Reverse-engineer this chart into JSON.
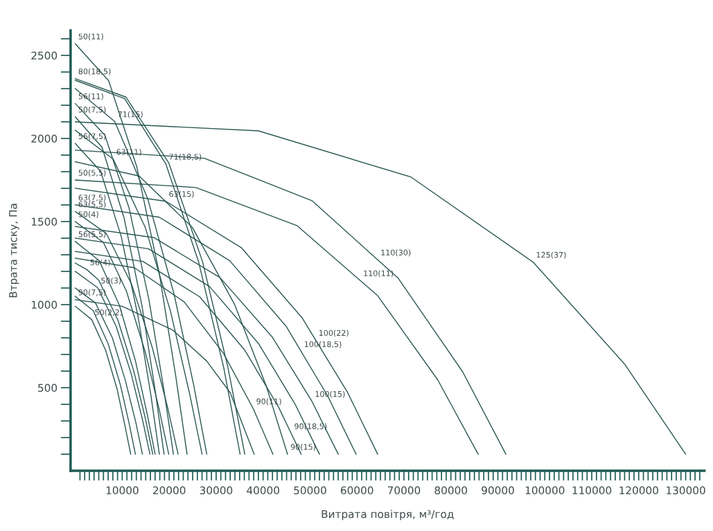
{
  "chart_data": {
    "type": "line",
    "xlabel": "Витрата повітря, м³/год",
    "ylabel": "Втрата тиску, Па",
    "xlim": [
      -1000,
      134000
    ],
    "ylim": [
      0,
      2650
    ],
    "xticks": [
      {
        "value": 1000,
        "label": null
      },
      {
        "value": 2000,
        "label": null
      },
      {
        "value": 3000,
        "label": null
      },
      {
        "value": 4000,
        "label": null
      },
      {
        "value": 5000,
        "label": null
      },
      {
        "value": 6000,
        "label": null
      },
      {
        "value": 7000,
        "label": null
      },
      {
        "value": 8000,
        "label": null
      },
      {
        "value": 9000,
        "label": null
      },
      10000,
      {
        "value": 11000,
        "label": null
      },
      {
        "value": 12000,
        "label": null
      },
      {
        "value": 13000,
        "label": null
      },
      {
        "value": 14000,
        "label": null
      },
      {
        "value": 15000,
        "label": null
      },
      {
        "value": 16000,
        "label": null
      },
      {
        "value": 17000,
        "label": null
      },
      {
        "value": 18000,
        "label": null
      },
      {
        "value": 19000,
        "label": null
      },
      20000,
      {
        "value": 21000,
        "label": null
      },
      {
        "value": 22000,
        "label": null
      },
      {
        "value": 23000,
        "label": null
      },
      {
        "value": 24000,
        "label": null
      },
      {
        "value": 25000,
        "label": null
      },
      {
        "value": 26000,
        "label": null
      },
      {
        "value": 27000,
        "label": null
      },
      {
        "value": 28000,
        "label": null
      },
      {
        "value": 29000,
        "label": null
      },
      30000,
      {
        "value": 31000,
        "label": null
      },
      {
        "value": 32000,
        "label": null
      },
      {
        "value": 33000,
        "label": null
      },
      {
        "value": 34000,
        "label": null
      },
      {
        "value": 35000,
        "label": null
      },
      {
        "value": 36000,
        "label": null
      },
      {
        "value": 37000,
        "label": null
      },
      {
        "value": 38000,
        "label": null
      },
      {
        "value": 39000,
        "label": null
      },
      40000,
      {
        "value": 41000,
        "label": null
      },
      {
        "value": 42000,
        "label": null
      },
      {
        "value": 43000,
        "label": null
      },
      {
        "value": 44000,
        "label": null
      },
      {
        "value": 45000,
        "label": null
      },
      {
        "value": 46000,
        "label": null
      },
      {
        "value": 47000,
        "label": null
      },
      {
        "value": 48000,
        "label": null
      },
      {
        "value": 49000,
        "label": null
      },
      50000,
      {
        "value": 51000,
        "label": null
      },
      {
        "value": 52000,
        "label": null
      },
      {
        "value": 53000,
        "label": null
      },
      {
        "value": 54000,
        "label": null
      },
      {
        "value": 55000,
        "label": null
      },
      {
        "value": 56000,
        "label": null
      },
      {
        "value": 57000,
        "label": null
      },
      {
        "value": 58000,
        "label": null
      },
      {
        "value": 59000,
        "label": null
      },
      60000,
      {
        "value": 61000,
        "label": null
      },
      {
        "value": 62000,
        "label": null
      },
      {
        "value": 63000,
        "label": null
      },
      {
        "value": 64000,
        "label": null
      },
      {
        "value": 65000,
        "label": null
      },
      {
        "value": 66000,
        "label": null
      },
      {
        "value": 67000,
        "label": null
      },
      {
        "value": 68000,
        "label": null
      },
      {
        "value": 69000,
        "label": null
      },
      70000,
      {
        "value": 71000,
        "label": null
      },
      {
        "value": 72000,
        "label": null
      },
      {
        "value": 73000,
        "label": null
      },
      {
        "value": 74000,
        "label": null
      },
      {
        "value": 75000,
        "label": null
      },
      {
        "value": 76000,
        "label": null
      },
      {
        "value": 77000,
        "label": null
      },
      {
        "value": 78000,
        "label": null
      },
      {
        "value": 79000,
        "label": null
      },
      80000,
      {
        "value": 81000,
        "label": null
      },
      {
        "value": 82000,
        "label": null
      },
      {
        "value": 83000,
        "label": null
      },
      {
        "value": 84000,
        "label": null
      },
      {
        "value": 85000,
        "label": null
      },
      {
        "value": 86000,
        "label": null
      },
      {
        "value": 87000,
        "label": null
      },
      {
        "value": 88000,
        "label": null
      },
      {
        "value": 89000,
        "label": null
      },
      90000,
      {
        "value": 91000,
        "label": null
      },
      {
        "value": 92000,
        "label": null
      },
      {
        "value": 93000,
        "label": null
      },
      {
        "value": 94000,
        "label": null
      },
      {
        "value": 95000,
        "label": null
      },
      {
        "value": 96000,
        "label": null
      },
      {
        "value": 97000,
        "label": null
      },
      {
        "value": 98000,
        "label": null
      },
      {
        "value": 99000,
        "label": null
      },
      100000,
      {
        "value": 101000,
        "label": null
      },
      {
        "value": 102000,
        "label": null
      },
      {
        "value": 103000,
        "label": null
      },
      {
        "value": 104000,
        "label": null
      },
      {
        "value": 105000,
        "label": null
      },
      {
        "value": 106000,
        "label": null
      },
      {
        "value": 107000,
        "label": null
      },
      {
        "value": 108000,
        "label": null
      },
      {
        "value": 109000,
        "label": null
      },
      110000,
      {
        "value": 111000,
        "label": null
      },
      {
        "value": 112000,
        "label": null
      },
      {
        "value": 113000,
        "label": null
      },
      {
        "value": 114000,
        "label": null
      },
      {
        "value": 115000,
        "label": null
      },
      {
        "value": 116000,
        "label": null
      },
      {
        "value": 117000,
        "label": null
      },
      {
        "value": 118000,
        "label": null
      },
      {
        "value": 119000,
        "label": null
      },
      120000,
      {
        "value": 121000,
        "label": null
      },
      {
        "value": 122000,
        "label": null
      },
      {
        "value": 123000,
        "label": null
      },
      {
        "value": 124000,
        "label": null
      },
      {
        "value": 125000,
        "label": null
      },
      {
        "value": 126000,
        "label": null
      },
      {
        "value": 127000,
        "label": null
      },
      {
        "value": 128000,
        "label": null
      },
      {
        "value": 129000,
        "label": null
      },
      130000,
      {
        "value": 131000,
        "label": null
      },
      {
        "value": 132000,
        "label": null
      },
      {
        "value": 133000,
        "label": null
      }
    ],
    "yticks": [
      {
        "value": 100,
        "label": null
      },
      {
        "value": 200,
        "label": null
      },
      {
        "value": 300,
        "label": null
      },
      {
        "value": 400,
        "label": null
      },
      500,
      {
        "value": 600,
        "label": null
      },
      {
        "value": 700,
        "label": null
      },
      {
        "value": 800,
        "label": null
      },
      {
        "value": 900,
        "label": null
      },
      1000,
      {
        "value": 1100,
        "label": null
      },
      {
        "value": 1200,
        "label": null
      },
      {
        "value": 1300,
        "label": null
      },
      {
        "value": 1400,
        "label": null
      },
      1500,
      {
        "value": 1600,
        "label": null
      },
      {
        "value": 1700,
        "label": null
      },
      {
        "value": 1800,
        "label": null
      },
      {
        "value": 1900,
        "label": null
      },
      2000,
      {
        "value": 2100,
        "label": null
      },
      {
        "value": 2200,
        "label": null
      },
      {
        "value": 2300,
        "label": null
      },
      {
        "value": 2400,
        "label": null
      },
      2500,
      {
        "value": 2600,
        "label": null
      }
    ],
    "series": [
      {
        "color": "#2a5753",
        "x": [
          0,
          7100,
          13100,
          17900,
          21400,
          23800
        ],
        "values": [
          2570,
          2348,
          1829,
          1187,
          569,
          100
        ]
      },
      {
        "color": "#2a5753",
        "x": [
          0,
          10800,
          19900,
          27100,
          32500,
          36100
        ],
        "values": [
          2360,
          2249,
          1854,
          1259,
          624,
          100
        ]
      },
      {
        "color": "#2a5753",
        "x": [
          0,
          10500,
          19300,
          26300,
          31600,
          35100
        ],
        "values": [
          2350,
          2240,
          1846,
          1254,
          622,
          100
        ]
      },
      {
        "color": "#2a5753",
        "x": [
          0,
          8400,
          15400,
          21000,
          25200,
          28000
        ],
        "values": [
          2300,
          2102,
          1640,
          1068,
          518,
          100
        ]
      },
      {
        "color": "#2a5753",
        "x": [
          0,
          6300,
          11500,
          15700,
          18800,
          20900
        ],
        "values": [
          2210,
          2020,
          1577,
          1028,
          501,
          100
        ]
      },
      {
        "color": "#2a5753",
        "x": [
          0,
          5700,
          10400,
          14200,
          17000,
          18900
        ],
        "values": [
          2130,
          1947,
          1521,
          993,
          486,
          100
        ]
      },
      {
        "color": "#2a5753",
        "x": [
          0,
          39000,
          71500,
          97500,
          117000,
          130000
        ],
        "values": [
          2100,
          2046,
          1768,
          1256,
          642,
          100
        ]
      },
      {
        "color": "#2a5753",
        "x": [
          0,
          8100,
          14900,
          20300,
          24300,
          27000
        ],
        "values": [
          2050,
          1875,
          1465,
          958,
          470,
          100
        ]
      },
      {
        "color": "#2a5753",
        "x": [
          0,
          5400,
          9800,
          13400,
          16100,
          17900
        ],
        "values": [
          1970,
          1802,
          1409,
          923,
          455,
          100
        ]
      },
      {
        "color": "#2a5753",
        "x": [
          0,
          27500,
          50400,
          64400,
          68800,
          82500,
          91700
        ],
        "values": [
          1930,
          1881,
          1626,
          1270,
          1158,
          596,
          100
        ]
      },
      {
        "color": "#2a5753",
        "x": [
          0,
          13600,
          24900,
          33900,
          40700,
          45200
        ],
        "values": [
          1860,
          1774,
          1466,
          1003,
          508,
          100
        ]
      },
      {
        "color": "#2a5753",
        "x": [
          0,
          25700,
          47200,
          60700,
          64400,
          77200,
          85800
        ],
        "values": [
          1750,
          1705,
          1476,
          1145,
          1054,
          547,
          100
        ]
      },
      {
        "color": "#2a5753",
        "x": [
          0,
          19300,
          35400,
          48300,
          51200,
          58000,
          64400
        ],
        "values": [
          1700,
          1622,
          1342,
          921,
          786,
          471,
          100
        ]
      },
      {
        "color": "#2a5753",
        "x": [
          0,
          17900,
          32900,
          44900,
          48100,
          53800,
          59800
        ],
        "values": [
          1600,
          1526,
          1264,
          870,
          718,
          448,
          100
        ]
      },
      {
        "color": "#2a5753",
        "x": [
          0,
          6600,
          12000,
          16400,
          19700,
          21900
        ],
        "values": [
          1560,
          1429,
          1122,
          742,
          377,
          100
        ]
      },
      {
        "color": "#2a5753",
        "x": [
          0,
          6000,
          10900,
          14900,
          17900,
          19900
        ],
        "values": [
          1500,
          1374,
          1080,
          716,
          366,
          100
        ]
      },
      {
        "color": "#2a5753",
        "x": [
          0,
          16800,
          30800,
          42000,
          50400,
          56000
        ],
        "values": [
          1470,
          1403,
          1163,
          803,
          418,
          100
        ]
      },
      {
        "color": "#2a5753",
        "x": [
          0,
          15600,
          28600,
          39000,
          46800,
          52000
        ],
        "values": [
          1400,
          1336,
          1109,
          767,
          402,
          100
        ]
      },
      {
        "color": "#2a5753",
        "x": [
          0,
          5100,
          9400,
          12800,
          15300,
          17000
        ],
        "values": [
          1380,
          1265,
          996,
          663,
          343,
          100
        ]
      },
      {
        "color": "#2a5753",
        "x": [
          0,
          14400,
          26500,
          36100,
          43300,
          46000,
          48100
        ],
        "values": [
          1320,
          1260,
          1047,
          726,
          383,
          224,
          100
        ]
      },
      {
        "color": "#2a5753",
        "x": [
          0,
          12600,
          23200,
          31600,
          37900,
          42100
        ],
        "values": [
          1280,
          1222,
          1016,
          705,
          374,
          100
        ]
      },
      {
        "color": "#2a5753",
        "x": [
          0,
          2500,
          5000,
          9100,
          12400,
          14900,
          16500
        ],
        "values": [
          1250,
          1210,
          1147,
          905,
          606,
          319,
          100
        ]
      },
      {
        "color": "#2a5753",
        "x": [
          0,
          4800,
          8700,
          11900,
          14300,
          15900
        ],
        "values": [
          1200,
          1101,
          870,
          584,
          309,
          100
        ]
      },
      {
        "color": "#2a5753",
        "x": [
          0,
          4300,
          7900,
          10700,
          12900,
          14300
        ],
        "values": [
          1100,
          1010,
          800,
          540,
          290,
          100
        ]
      },
      {
        "color": "#2a5753",
        "x": [
          0,
          3800,
          7000,
          9600,
          11500,
          12800
        ],
        "values": [
          1050,
          965,
          765,
          518,
          281,
          100
        ]
      },
      {
        "color": "#2a5753",
        "x": [
          0,
          10000,
          20800,
          28000,
          33000,
          38100
        ],
        "values": [
          1030,
          990,
          846,
          660,
          470,
          100
        ]
      },
      {
        "color": "#2a5753",
        "x": [
          0,
          3500,
          6500,
          8900,
          10600,
          11800
        ],
        "values": [
          990,
          910,
          723,
          492,
          269,
          100
        ]
      }
    ],
    "annotations": [
      {
        "text": "50(11)",
        "x": 0,
        "y": 2570
      },
      {
        "text": "80(18,5)",
        "x": 0,
        "y": 2360
      },
      {
        "text": "56(11)",
        "x": 0,
        "y": 2210
      },
      {
        "text": "50(7,5)",
        "x": 0,
        "y": 2130
      },
      {
        "text": "56(7,5)",
        "x": 0,
        "y": 1970
      },
      {
        "text": "63(11)",
        "x": 8100,
        "y": 1875
      },
      {
        "text": "71(15)",
        "x": 8400,
        "y": 2102
      },
      {
        "text": "71(18,5)",
        "x": 19300,
        "y": 1846
      },
      {
        "text": "50(5,5)",
        "x": 0,
        "y": 1750
      },
      {
        "text": "63(7,5)",
        "x": 0,
        "y": 1600
      },
      {
        "text": "63(15)",
        "x": 19300,
        "y": 1622
      },
      {
        "text": "63(5,5)",
        "x": 0,
        "y": 1560
      },
      {
        "text": "50(4)",
        "x": 0,
        "y": 1500
      },
      {
        "text": "56(5,5)",
        "x": 0,
        "y": 1380
      },
      {
        "text": "56(4)",
        "x": 2500,
        "y": 1210
      },
      {
        "text": "50(3)",
        "x": 4800,
        "y": 1101
      },
      {
        "text": "90(7,5)",
        "x": 0,
        "y": 1030
      },
      {
        "text": "50(2,2)",
        "x": 3500,
        "y": 910
      },
      {
        "text": "90(11)",
        "x": 37900,
        "y": 374
      },
      {
        "text": "90(15)",
        "x": 45200,
        "y": 100
      },
      {
        "text": "90(18,5)",
        "x": 46000,
        "y": 224
      },
      {
        "text": "100(15)",
        "x": 50400,
        "y": 418
      },
      {
        "text": "100(18,5)",
        "x": 48100,
        "y": 718
      },
      {
        "text": "100(22)",
        "x": 51200,
        "y": 786
      },
      {
        "text": "110(11)",
        "x": 60700,
        "y": 1145
      },
      {
        "text": "110(30)",
        "x": 64400,
        "y": 1270
      },
      {
        "text": "125(37)",
        "x": 97500,
        "y": 1256
      }
    ]
  }
}
